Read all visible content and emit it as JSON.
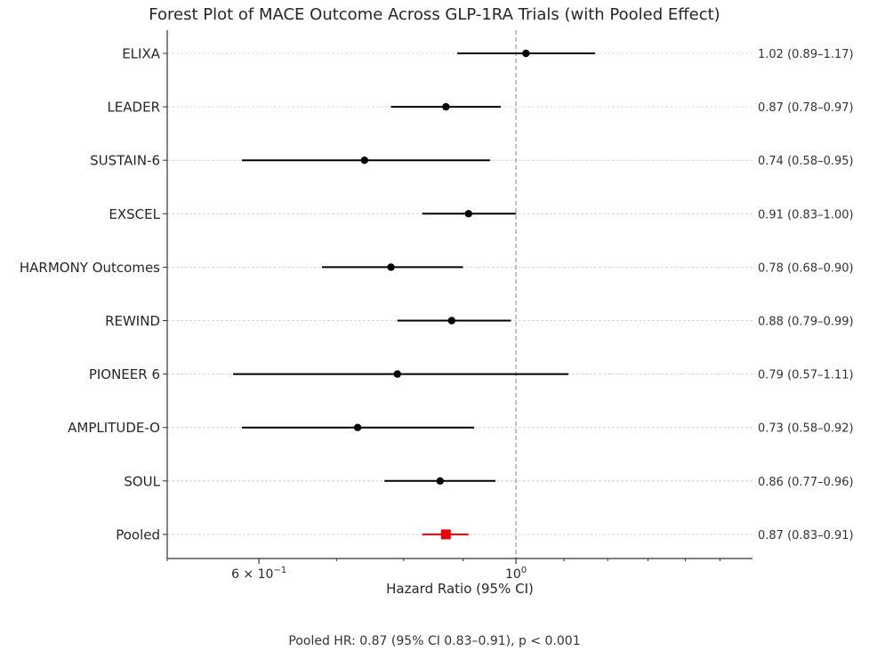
{
  "chart_data": {
    "type": "forest",
    "title": "Forest Plot of MACE Outcome Across GLP-1RA Trials (with Pooled Effect)",
    "xlabel": "Hazard Ratio (95% CI)",
    "xscale": "log",
    "xlim": [
      0.5,
      1.6
    ],
    "reference_line": 1.0,
    "xticks": [
      {
        "value": 0.6,
        "label_base": "6 × 10",
        "label_exp": "−1"
      },
      {
        "value": 1.0,
        "label_base": "10",
        "label_exp": "0"
      }
    ],
    "studies": [
      {
        "name": "ELIXA",
        "hr": 1.02,
        "lo": 0.89,
        "hi": 1.17,
        "label": "1.02 (0.89–1.17)"
      },
      {
        "name": "LEADER",
        "hr": 0.87,
        "lo": 0.78,
        "hi": 0.97,
        "label": "0.87 (0.78–0.97)"
      },
      {
        "name": "SUSTAIN-6",
        "hr": 0.74,
        "lo": 0.58,
        "hi": 0.95,
        "label": "0.74 (0.58–0.95)"
      },
      {
        "name": "EXSCEL",
        "hr": 0.91,
        "lo": 0.83,
        "hi": 1.0,
        "label": "0.91 (0.83–1.00)"
      },
      {
        "name": "HARMONY Outcomes",
        "hr": 0.78,
        "lo": 0.68,
        "hi": 0.9,
        "label": "0.78 (0.68–0.90)"
      },
      {
        "name": "REWIND",
        "hr": 0.88,
        "lo": 0.79,
        "hi": 0.99,
        "label": "0.88 (0.79–0.99)"
      },
      {
        "name": "PIONEER 6",
        "hr": 0.79,
        "lo": 0.57,
        "hi": 1.11,
        "label": "0.79 (0.57–1.11)"
      },
      {
        "name": "AMPLITUDE-O",
        "hr": 0.73,
        "lo": 0.58,
        "hi": 0.92,
        "label": "0.73 (0.58–0.92)"
      },
      {
        "name": "SOUL",
        "hr": 0.86,
        "lo": 0.77,
        "hi": 0.96,
        "label": "0.86 (0.77–0.96)"
      },
      {
        "name": "Pooled",
        "hr": 0.87,
        "lo": 0.83,
        "hi": 0.91,
        "label": "0.87 (0.83–0.91)",
        "pooled": true
      }
    ],
    "footer": "Pooled HR: 0.87 (95% CI 0.83–0.91), p < 0.001"
  },
  "colors": {
    "study": "#000000",
    "pooled": "#ee0000",
    "axis": "#333333",
    "grid": "#cccccc",
    "reference": "#9a9a9a"
  }
}
